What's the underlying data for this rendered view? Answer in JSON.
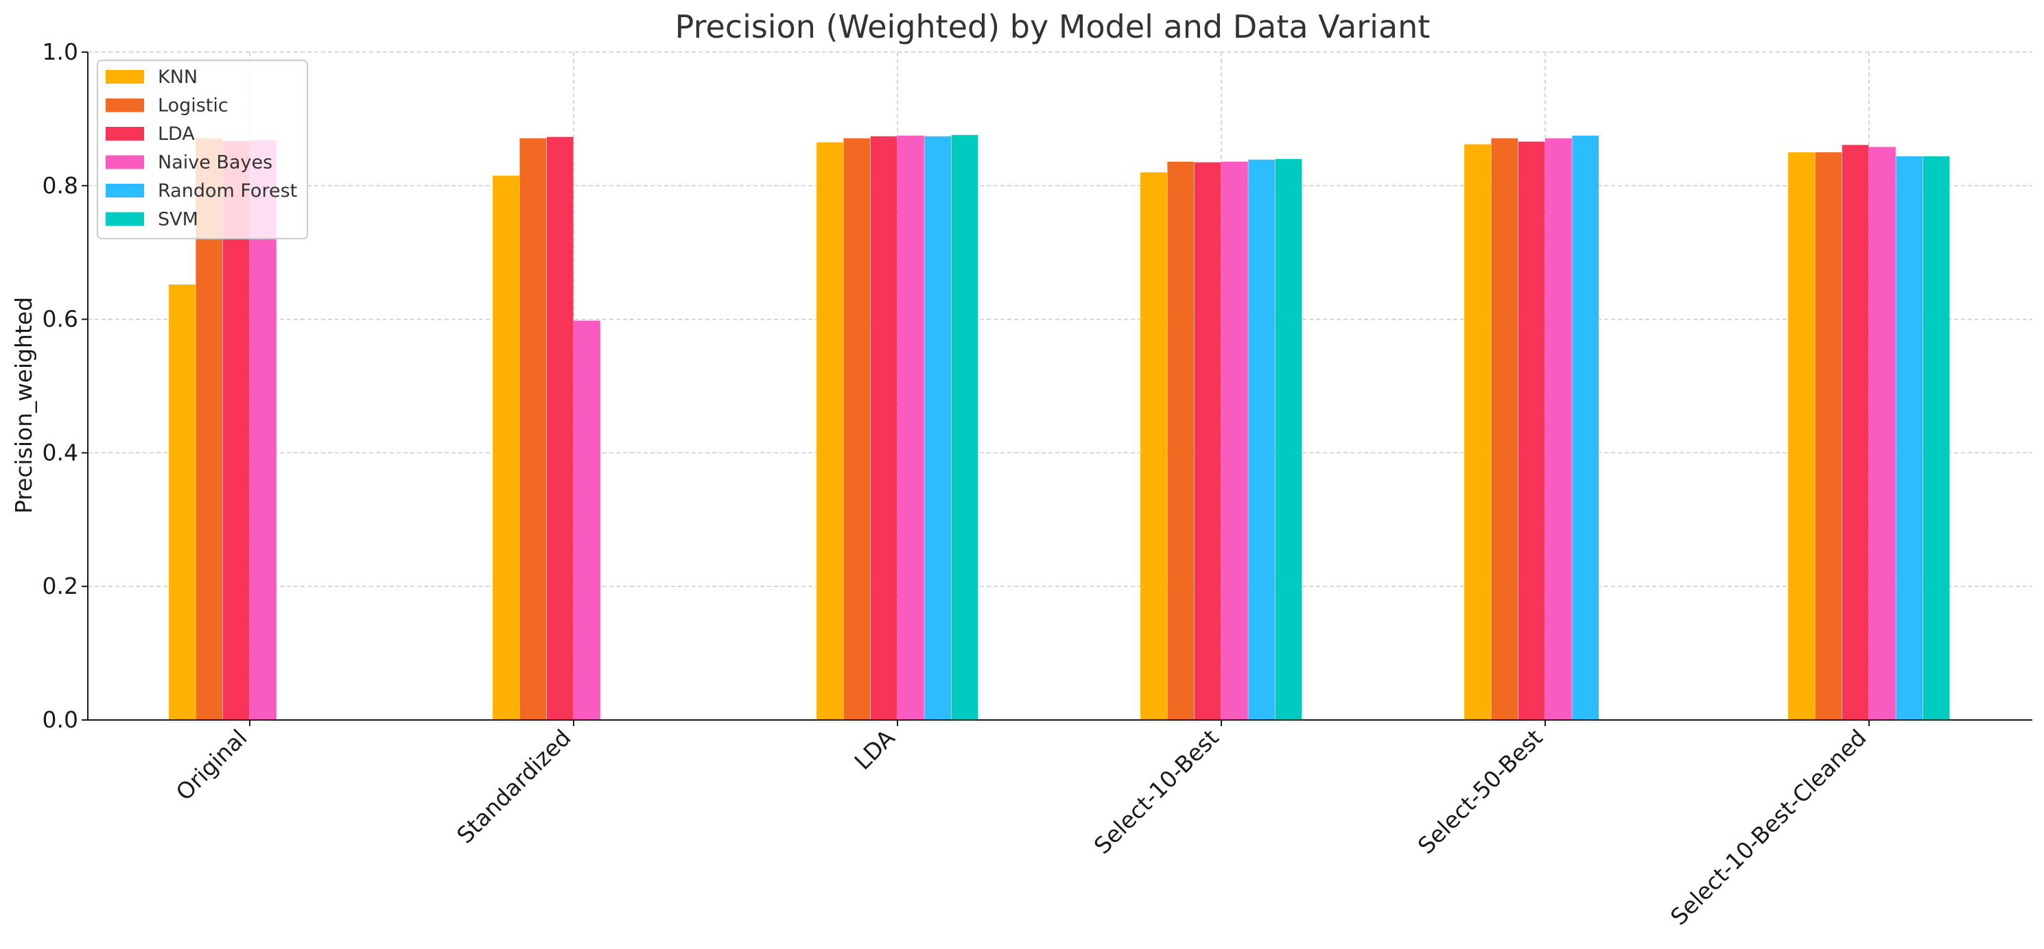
{
  "chart_data": {
    "type": "bar",
    "title": "Precision (Weighted) by Model and Data Variant",
    "xlabel": "",
    "ylabel": "Precision_weighted",
    "ylim": [
      0,
      1.0
    ],
    "yticks": [
      "0.0",
      "0.2",
      "0.4",
      "0.6",
      "0.8",
      "1.0"
    ],
    "grid": true,
    "legend_position": "top-left",
    "categories": [
      "Original",
      "Standardized",
      "LDA",
      "Select-10-Best",
      "Select-50-Best",
      "Select-10-Best-Cleaned"
    ],
    "series": [
      {
        "name": "KNN",
        "color": "#FFB000",
        "values": [
          0.652,
          0.815,
          0.865,
          0.82,
          0.862,
          0.85
        ]
      },
      {
        "name": "Logistic",
        "color": "#F26922",
        "values": [
          0.871,
          0.871,
          0.871,
          0.836,
          0.871,
          0.85
        ]
      },
      {
        "name": "LDA",
        "color": "#F83556",
        "values": [
          0.867,
          0.873,
          0.874,
          0.835,
          0.866,
          0.861
        ]
      },
      {
        "name": "Naive Bayes",
        "color": "#FA5BC1",
        "values": [
          0.868,
          0.598,
          0.875,
          0.836,
          0.871,
          0.858
        ]
      },
      {
        "name": "Random Forest",
        "color": "#2BBDFD",
        "values": [
          null,
          null,
          0.874,
          0.839,
          0.875,
          0.844
        ]
      },
      {
        "name": "SVM",
        "color": "#00CBC0",
        "values": [
          null,
          null,
          0.876,
          0.84,
          null,
          0.844
        ]
      }
    ]
  }
}
